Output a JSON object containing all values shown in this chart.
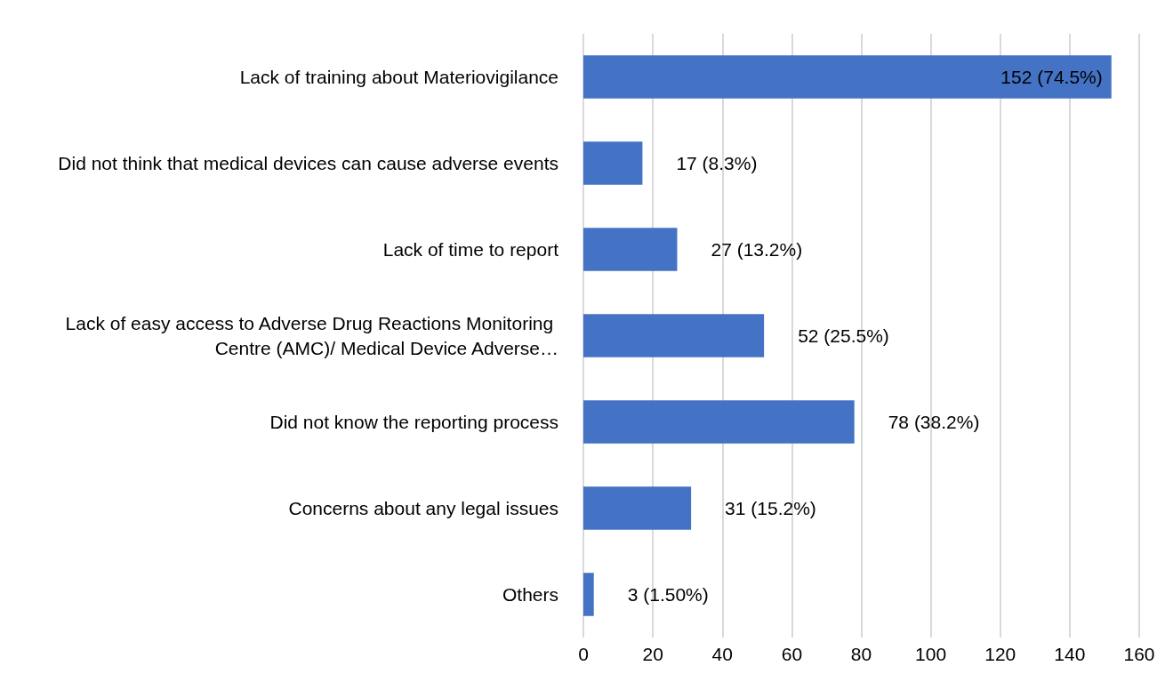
{
  "chart_data": {
    "type": "bar",
    "orientation": "horizontal",
    "categories": [
      "Lack of training about Materiovigilance",
      "Did not think that medical devices can cause adverse events",
      "Lack of time to report",
      "Lack of easy access to Adverse Drug Reactions Monitoring Centre (AMC)/ Medical Device Adverse…",
      "Did not know the reporting process",
      "Concerns about any legal issues",
      "Others"
    ],
    "values": [
      152,
      17,
      27,
      52,
      78,
      31,
      3
    ],
    "value_labels": [
      "152 (74.5%)",
      "17 (8.3%)",
      "27 (13.2%)",
      "52 (25.5%)",
      "78 (38.2%)",
      "31 (15.2%)",
      "3 (1.50%)"
    ],
    "color": "#4472c4",
    "xlim": [
      0,
      160
    ],
    "xticks": [
      0,
      20,
      40,
      60,
      80,
      100,
      120,
      140,
      160
    ],
    "grid": "x"
  }
}
